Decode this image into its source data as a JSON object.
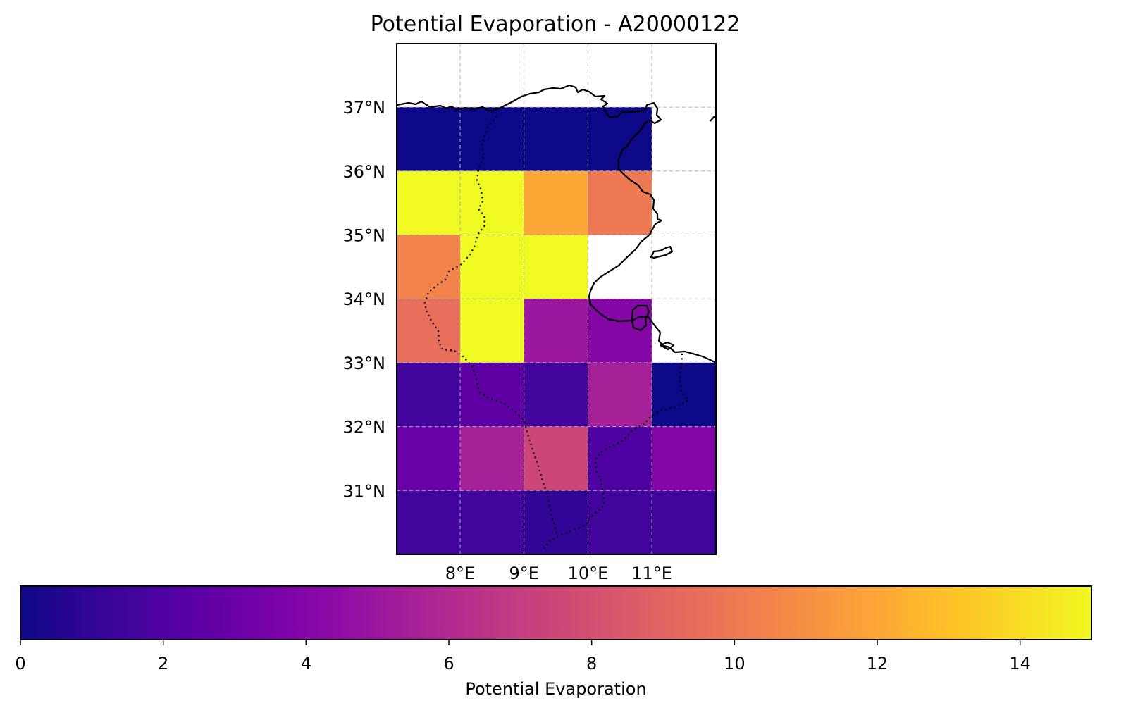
{
  "chart_data": {
    "type": "heatmap",
    "title": "Potential Evaporation - A20000122",
    "colorbar_label": "Potential Evaporation",
    "colormap": "plasma",
    "colormap_stops": [
      "#0d0887",
      "#2a0593",
      "#41049d",
      "#5601a4",
      "#6a00a8",
      "#7e03a8",
      "#8f0da4",
      "#a11b9b",
      "#b12a90",
      "#bf3984",
      "#cc4778",
      "#d6556d",
      "#e16462",
      "#ea7457",
      "#f2844b",
      "#f89540",
      "#fca636",
      "#feba2c",
      "#fcce25",
      "#f7e225",
      "#f0f921"
    ],
    "vmin": 0,
    "vmax": 15,
    "colorbar_ticks": [
      "0",
      "2",
      "4",
      "6",
      "8",
      "10",
      "12",
      "14"
    ],
    "x_ticks": [
      "8°E",
      "9°E",
      "10°E",
      "11°E"
    ],
    "y_ticks": [
      "37°N",
      "36°N",
      "35°N",
      "34°N",
      "33°N",
      "32°N",
      "31°N"
    ],
    "lon_range": [
      7.0,
      12.0
    ],
    "lat_range": [
      30.0,
      38.0
    ],
    "lon_edges": [
      7,
      8,
      9,
      10,
      11,
      12
    ],
    "lat_edges": [
      37,
      36,
      35,
      34,
      33,
      32,
      31,
      30
    ],
    "grid": true,
    "values": [
      [
        0.0,
        0.0,
        0.0,
        0.0,
        null
      ],
      [
        15.0,
        15.0,
        12.0,
        10.0,
        null
      ],
      [
        10.5,
        15.0,
        15.0,
        null,
        null
      ],
      [
        9.5,
        15.0,
        5.0,
        4.0,
        null
      ],
      [
        1.5,
        2.5,
        1.5,
        5.5,
        0.0
      ],
      [
        3.0,
        5.5,
        7.5,
        2.0,
        4.0
      ],
      [
        1.5,
        1.5,
        1.0,
        1.5,
        1.5
      ]
    ]
  }
}
